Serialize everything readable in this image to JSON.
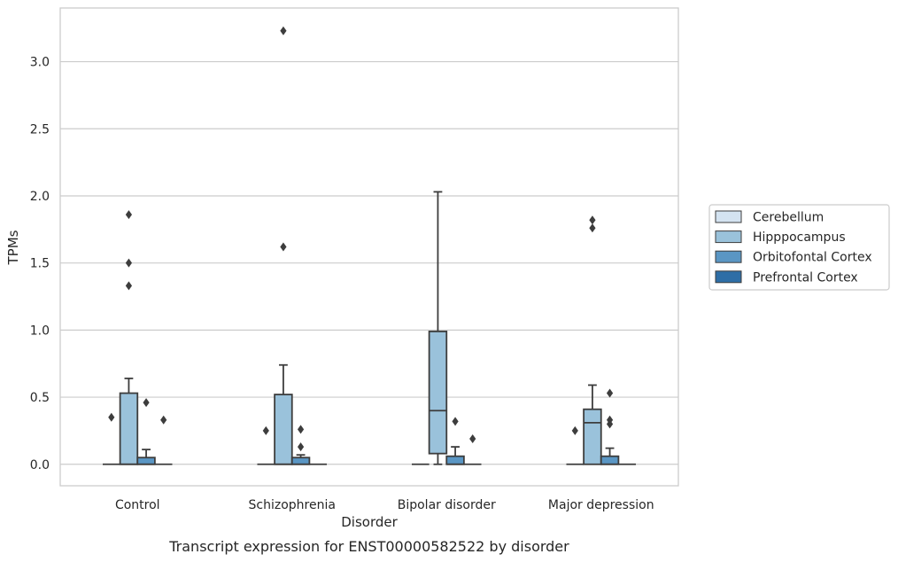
{
  "caption": "Transcript expression for ENST00000582522 by disorder",
  "chart_data": {
    "type": "box",
    "title": "",
    "xlabel": "Disorder",
    "ylabel": "TPMs",
    "ylim": [
      -0.16,
      3.4
    ],
    "yticks": [
      0.0,
      0.5,
      1.0,
      1.5,
      2.0,
      2.5,
      3.0
    ],
    "ytick_labels": [
      "0.0",
      "0.5",
      "1.0",
      "1.5",
      "2.0",
      "2.5",
      "3.0"
    ],
    "grid": "horizontal",
    "legend_position": "right",
    "categories": [
      "Control",
      "Schizophrenia",
      "Bipolar disorder",
      "Major depression"
    ],
    "series": [
      {
        "name": "Cerebellum",
        "color": "#d4e3f1",
        "boxes": [
          {
            "q1": 0,
            "median": 0,
            "q3": 0,
            "whisker_low": 0,
            "whisker_high": 0,
            "outliers": [
              0.35
            ]
          },
          {
            "q1": 0,
            "median": 0,
            "q3": 0,
            "whisker_low": 0,
            "whisker_high": 0,
            "outliers": [
              0.25
            ]
          },
          {
            "q1": 0,
            "median": 0,
            "q3": 0,
            "whisker_low": 0,
            "whisker_high": 0,
            "outliers": []
          },
          {
            "q1": 0,
            "median": 0,
            "q3": 0,
            "whisker_low": 0,
            "whisker_high": 0,
            "outliers": [
              0.25
            ]
          }
        ]
      },
      {
        "name": "Hipppocampus",
        "color": "#9ac2db",
        "boxes": [
          {
            "q1": 0,
            "median": 0,
            "q3": 0.53,
            "whisker_low": 0,
            "whisker_high": 0.64,
            "outliers": [
              1.33,
              1.5,
              1.86
            ]
          },
          {
            "q1": 0,
            "median": 0,
            "q3": 0.52,
            "whisker_low": 0,
            "whisker_high": 0.74,
            "outliers": [
              1.62,
              3.23
            ]
          },
          {
            "q1": 0.08,
            "median": 0.4,
            "q3": 0.99,
            "whisker_low": 0,
            "whisker_high": 2.03,
            "outliers": []
          },
          {
            "q1": 0,
            "median": 0.31,
            "q3": 0.41,
            "whisker_low": 0,
            "whisker_high": 0.59,
            "outliers": [
              1.76,
              1.82
            ]
          }
        ]
      },
      {
        "name": "Orbitofontal Cortex",
        "color": "#5a96c4",
        "boxes": [
          {
            "q1": 0,
            "median": 0,
            "q3": 0.05,
            "whisker_low": 0,
            "whisker_high": 0.11,
            "outliers": [
              0.46
            ]
          },
          {
            "q1": 0,
            "median": 0,
            "q3": 0.05,
            "whisker_low": 0,
            "whisker_high": 0.07,
            "outliers": [
              0.13,
              0.26
            ]
          },
          {
            "q1": 0,
            "median": 0,
            "q3": 0.06,
            "whisker_low": 0,
            "whisker_high": 0.13,
            "outliers": [
              0.32
            ]
          },
          {
            "q1": 0,
            "median": 0,
            "q3": 0.06,
            "whisker_low": 0,
            "whisker_high": 0.12,
            "outliers": [
              0.3,
              0.33,
              0.53
            ]
          }
        ]
      },
      {
        "name": "Prefrontal Cortex",
        "color": "#2e6ea6",
        "boxes": [
          {
            "q1": 0,
            "median": 0,
            "q3": 0,
            "whisker_low": 0,
            "whisker_high": 0,
            "outliers": [
              0.33
            ]
          },
          {
            "q1": 0,
            "median": 0,
            "q3": 0,
            "whisker_low": 0,
            "whisker_high": 0,
            "outliers": []
          },
          {
            "q1": 0,
            "median": 0,
            "q3": 0,
            "whisker_low": 0,
            "whisker_high": 0,
            "outliers": [
              0.19
            ]
          },
          {
            "q1": 0,
            "median": 0,
            "q3": 0,
            "whisker_low": 0,
            "whisker_high": 0,
            "outliers": []
          }
        ]
      }
    ]
  }
}
